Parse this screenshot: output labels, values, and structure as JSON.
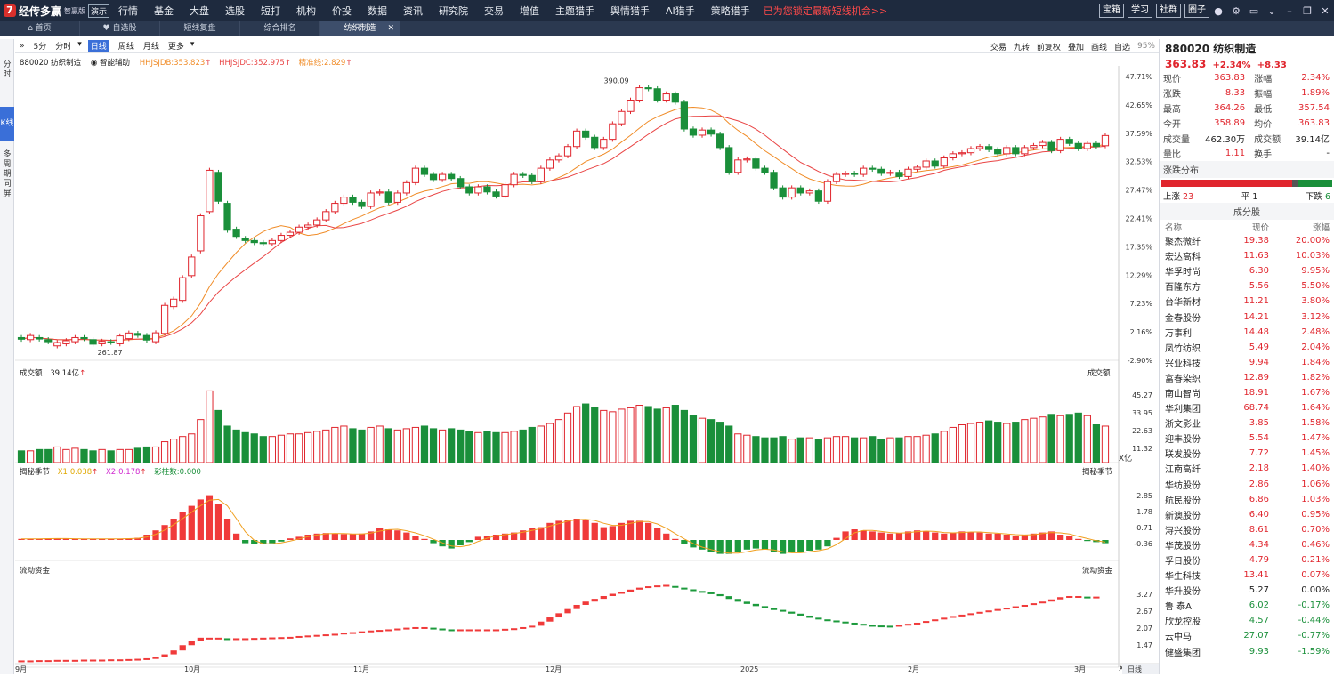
{
  "app": {
    "logo": "7",
    "name": "经传多赢",
    "edition": "智赢版",
    "demo": "演示",
    "promo": "已为您锁定最新短线机会>>"
  },
  "menu": [
    "行情",
    "基金",
    "大盘",
    "选股",
    "短打",
    "机构",
    "价投",
    "数据",
    "资讯",
    "研究院",
    "交易",
    "增值",
    "主题猎手",
    "舆情猎手",
    "AI猎手",
    "策略猎手"
  ],
  "top_right": {
    "buttons": [
      "宝箱",
      "学习",
      "社群",
      "圈子"
    ],
    "icons": [
      "user-icon",
      "gear-icon",
      "window-icon",
      "chevron-down-icon",
      "minimize-icon",
      "restore-icon",
      "close-icon"
    ]
  },
  "tabs": [
    {
      "label": "首页",
      "icon": "home-icon"
    },
    {
      "label": "自选股",
      "icon": "heart-icon"
    },
    {
      "label": "短线复盘"
    },
    {
      "label": "综合排名"
    },
    {
      "label": "纺织制造",
      "active": true
    }
  ],
  "side_tabs": [
    "分时",
    "K线",
    "多周期同屏"
  ],
  "toolbar": {
    "periods": [
      "5分",
      "分时",
      "日线",
      "周线",
      "月线",
      "更多"
    ],
    "selected": "日线",
    "right": [
      "交易",
      "九转",
      "前复权",
      "叠加",
      "画线",
      "自选"
    ],
    "zoom": "95%"
  },
  "chart_header": {
    "code_name": "880020 纺织制造",
    "smart": "智能辅助",
    "ma1": "HHJSJDB:353.823",
    "ma2": "HHJSJDC:352.975",
    "ma3": "精准线:2.829"
  },
  "volume_header": {
    "label": "成交额",
    "value": "39.14亿",
    "right": "成交额",
    "unit": "X亿"
  },
  "ind_header": {
    "name": "揭秘季节",
    "x1": "X1:0.038",
    "x2": "X2:0.178",
    "k": "彩柱数:0.000",
    "right": "揭秘季节"
  },
  "flow_header": {
    "name": "流动资金",
    "right": "流动资金",
    "unit": "X亿"
  },
  "price_axis": [
    "47.71%",
    "42.65%",
    "37.59%",
    "32.53%",
    "27.47%",
    "22.41%",
    "17.35%",
    "12.29%",
    "7.23%",
    "2.16%",
    "-2.90%"
  ],
  "vol_axis": [
    "45.27",
    "33.95",
    "22.63",
    "11.32"
  ],
  "ind_axis": [
    "2.85",
    "1.78",
    "0.71",
    "-0.36"
  ],
  "flow_axis": [
    "3.27",
    "2.67",
    "2.07",
    "1.47"
  ],
  "date_axis": [
    "9月",
    "10月",
    "11月",
    "12月",
    "2025",
    "2月",
    "3月"
  ],
  "period_btn": "日线",
  "annot": {
    "high": "390.09",
    "low": "261.87"
  },
  "chart_data": {
    "type": "candlestick",
    "ylim": [
      255,
      395
    ],
    "closes": [
      265.2,
      267.0,
      265.3,
      264.0,
      263.6,
      264.5,
      266.0,
      265.5,
      262.8,
      264.2,
      263.7,
      266.8,
      268.2,
      267.1,
      264.8,
      268.3,
      281.6,
      284.6,
      295.0,
      305.0,
      325.0,
      347.0,
      332.0,
      318.0,
      315.0,
      313.0,
      312.0,
      311.5,
      313.0,
      315.5,
      317.0,
      319.5,
      320.5,
      323.0,
      327.0,
      331.0,
      334.0,
      331.5,
      329.5,
      336.0,
      336.5,
      331.5,
      336.0,
      341.0,
      348.0,
      345.0,
      342.5,
      345.0,
      343.0,
      339.0,
      336.0,
      339.0,
      336.5,
      334.5,
      340.0,
      345.0,
      344.5,
      341.5,
      348.0,
      352.0,
      354.0,
      358.5,
      366.0,
      363.0,
      358.0,
      362.0,
      369.5,
      375.5,
      381.0,
      387.0,
      386.5,
      381.0,
      384.0,
      380.0,
      367.0,
      364.0,
      366.5,
      364.5,
      358.0,
      346.0,
      352.0,
      352.5,
      348.0,
      346.0,
      338.5,
      334.0,
      338.5,
      336.0,
      337.0,
      332.0,
      341.5,
      345.0,
      345.5,
      345.0,
      348.0,
      347.5,
      345.5,
      346.0,
      344.0,
      347.5,
      348.5,
      351.5,
      349.0,
      353.0,
      355.0,
      355.5,
      357.5,
      358.5,
      357.0,
      355.0,
      358.0,
      355.0,
      358.0,
      359.0,
      360.5,
      356.5,
      362.0,
      360.0,
      357.5,
      360.0,
      358.5,
      363.83
    ],
    "opens": [
      266.0,
      265.0,
      266.0,
      265.0,
      262.0,
      263.0,
      264.0,
      266.0,
      265.0,
      263.0,
      264.0,
      263.0,
      265.5,
      268.0,
      267.0,
      264.0,
      268.0,
      281.0,
      284.0,
      296.0,
      308.0,
      327.0,
      346.0,
      331.0,
      318.5,
      314.0,
      313.0,
      312.0,
      311.5,
      313.0,
      315.5,
      317.0,
      319.5,
      320.5,
      323.0,
      327.0,
      331.0,
      334.0,
      331.5,
      329.5,
      336.0,
      336.5,
      331.5,
      336.0,
      341.0,
      348.0,
      345.0,
      342.5,
      345.0,
      343.0,
      339.0,
      336.0,
      339.0,
      336.5,
      334.5,
      340.0,
      345.0,
      344.5,
      341.5,
      348.0,
      352.0,
      354.0,
      358.5,
      366.0,
      363.0,
      358.0,
      362.0,
      369.5,
      375.5,
      381.0,
      387.0,
      386.5,
      381.0,
      384.0,
      380.0,
      367.0,
      364.0,
      366.5,
      364.5,
      358.0,
      346.0,
      352.0,
      352.5,
      348.0,
      346.0,
      338.5,
      334.0,
      338.5,
      336.0,
      337.0,
      332.0,
      341.5,
      345.0,
      345.5,
      345.0,
      348.0,
      347.5,
      345.5,
      346.0,
      344.0,
      347.5,
      348.5,
      351.5,
      349.0,
      353.0,
      355.0,
      355.5,
      357.5,
      358.5,
      357.0,
      355.0,
      358.0,
      355.0,
      358.0,
      359.0,
      360.5,
      356.5,
      362.0,
      360.0,
      357.5,
      360.0,
      358.89
    ],
    "volumes": [
      9,
      9,
      10,
      10,
      12,
      10,
      11,
      10,
      9,
      10,
      9,
      10,
      10,
      11,
      12,
      12,
      16,
      18,
      20,
      22,
      33,
      55,
      40,
      28,
      25,
      23,
      22,
      20,
      20,
      21,
      22,
      22,
      23,
      24,
      25,
      27,
      28,
      26,
      25,
      27,
      28,
      26,
      25,
      26,
      27,
      28,
      26,
      25,
      26,
      25,
      24,
      23,
      24,
      23,
      23,
      24,
      25,
      27,
      28,
      30,
      33,
      38,
      43,
      45,
      42,
      40,
      39,
      41,
      42,
      44,
      43,
      41,
      42,
      44,
      40,
      36,
      34,
      33,
      31,
      28,
      22,
      21,
      20,
      19,
      19,
      20,
      18,
      19,
      19,
      18,
      19,
      20,
      20,
      19,
      19,
      20,
      18,
      19,
      19,
      20,
      20,
      21,
      22,
      24,
      27,
      29,
      30,
      31,
      32,
      31,
      30,
      31,
      33,
      34,
      35,
      37,
      36,
      37,
      38,
      36,
      29,
      28,
      39.14
    ],
    "ind": [
      0.1,
      0.1,
      0.12,
      0.15,
      0.13,
      0.12,
      0.1,
      0.1,
      0.09,
      0.1,
      0.1,
      0.12,
      0.15,
      0.2,
      0.5,
      0.9,
      1.4,
      2.0,
      2.6,
      3.2,
      3.8,
      4.2,
      3.4,
      2.0,
      0.6,
      -0.3,
      -0.4,
      -0.35,
      -0.3,
      -0.15,
      0.15,
      0.3,
      0.5,
      0.6,
      0.65,
      0.6,
      0.55,
      0.55,
      0.6,
      0.8,
      1.1,
      1.0,
      0.9,
      0.7,
      0.4,
      0.1,
      -0.3,
      -0.6,
      -0.8,
      -0.5,
      -0.2,
      0.3,
      0.4,
      0.5,
      0.6,
      0.7,
      0.9,
      1.1,
      1.2,
      1.6,
      1.8,
      1.9,
      2.0,
      1.9,
      1.6,
      1.2,
      1.3,
      1.6,
      1.8,
      1.8,
      1.6,
      1.1,
      0.6,
      0.1,
      -0.4,
      -0.7,
      -0.9,
      -1.1,
      -1.3,
      -1.3,
      -1.1,
      -0.9,
      -0.8,
      -0.9,
      -1.1,
      -1.3,
      -1.2,
      -1.1,
      -1.0,
      -0.9,
      -0.6,
      0.2,
      0.8,
      1.0,
      0.9,
      0.8,
      0.7,
      0.6,
      0.65,
      0.8,
      0.9,
      0.8,
      0.7,
      0.6,
      0.7,
      0.8,
      0.75,
      0.7,
      0.6,
      0.6,
      0.5,
      0.4,
      0.5,
      0.6,
      0.7,
      0.8,
      0.5,
      0.4,
      0.1,
      -0.1,
      -0.2,
      -0.3
    ],
    "flow": [
      0.3,
      0.3,
      0.31,
      0.31,
      0.32,
      0.32,
      0.32,
      0.33,
      0.33,
      0.33,
      0.34,
      0.34,
      0.35,
      0.36,
      0.38,
      0.42,
      0.52,
      0.66,
      0.85,
      1.0,
      1.12,
      1.12,
      1.12,
      1.1,
      1.1,
      1.1,
      1.11,
      1.12,
      1.13,
      1.14,
      1.15,
      1.18,
      1.2,
      1.22,
      1.24,
      1.26,
      1.3,
      1.32,
      1.35,
      1.38,
      1.4,
      1.42,
      1.45,
      1.48,
      1.5,
      1.5,
      1.48,
      1.45,
      1.42,
      1.42,
      1.42,
      1.42,
      1.42,
      1.42,
      1.44,
      1.46,
      1.5,
      1.55,
      1.7,
      1.85,
      2.0,
      2.15,
      2.3,
      2.42,
      2.52,
      2.62,
      2.7,
      2.77,
      2.85,
      2.92,
      2.97,
      3.0,
      3.02,
      2.98,
      2.92,
      2.86,
      2.8,
      2.75,
      2.68,
      2.58,
      2.48,
      2.4,
      2.32,
      2.25,
      2.18,
      2.12,
      2.05,
      1.98,
      1.9,
      1.84,
      1.78,
      1.74,
      1.7,
      1.66,
      1.62,
      1.58,
      1.56,
      1.55,
      1.58,
      1.62,
      1.66,
      1.72,
      1.78,
      1.84,
      1.9,
      1.95,
      2.0,
      2.05,
      2.1,
      2.15,
      2.2,
      2.25,
      2.3,
      2.36,
      2.42,
      2.5,
      2.58,
      2.62,
      2.62,
      2.6,
      2.6
    ]
  },
  "quote": {
    "code_name": "880020 纺织制造",
    "price": "363.83",
    "chg_pct": "+2.34%",
    "chg": "+8.33",
    "rows": [
      [
        "现价",
        "363.83",
        "涨幅",
        "2.34%"
      ],
      [
        "涨跌",
        "8.33",
        "振幅",
        "1.89%"
      ],
      [
        "最高",
        "364.26",
        "最低",
        "357.54"
      ],
      [
        "今开",
        "358.89",
        "均价",
        "363.83"
      ],
      [
        "成交量",
        "462.30万",
        "成交额",
        "39.14亿"
      ],
      [
        "量比",
        "1.11",
        "换手",
        "-"
      ]
    ]
  },
  "dist": {
    "title": "涨跌分布",
    "up_label": "上涨",
    "up": "23",
    "flat_label": "平",
    "flat": "1",
    "down_label": "下跌",
    "down": "6"
  },
  "components": {
    "title": "成分股",
    "headers": [
      "名称",
      "现价",
      "涨幅"
    ],
    "rows": [
      [
        "聚杰微纤",
        "19.38",
        "20.00%"
      ],
      [
        "宏达高科",
        "11.63",
        "10.03%"
      ],
      [
        "华孚时尚",
        "6.30",
        "9.95%"
      ],
      [
        "百隆东方",
        "5.56",
        "5.50%"
      ],
      [
        "台华新材",
        "11.21",
        "3.80%"
      ],
      [
        "金春股份",
        "14.21",
        "3.12%"
      ],
      [
        "万事利",
        "14.48",
        "2.48%"
      ],
      [
        "凤竹纺织",
        "5.49",
        "2.04%"
      ],
      [
        "兴业科技",
        "9.94",
        "1.84%"
      ],
      [
        "富春染织",
        "12.89",
        "1.82%"
      ],
      [
        "南山智尚",
        "18.91",
        "1.67%"
      ],
      [
        "华利集团",
        "68.74",
        "1.64%"
      ],
      [
        "浙文影业",
        "3.85",
        "1.58%"
      ],
      [
        "迎丰股份",
        "5.54",
        "1.47%"
      ],
      [
        "联发股份",
        "7.72",
        "1.45%"
      ],
      [
        "江南高纤",
        "2.18",
        "1.40%"
      ],
      [
        "华纺股份",
        "2.86",
        "1.06%"
      ],
      [
        "航民股份",
        "6.86",
        "1.03%"
      ],
      [
        "新澳股份",
        "6.40",
        "0.95%"
      ],
      [
        "浔兴股份",
        "8.61",
        "0.70%"
      ],
      [
        "华茂股份",
        "4.34",
        "0.46%"
      ],
      [
        "孚日股份",
        "4.79",
        "0.21%"
      ],
      [
        "华生科技",
        "13.41",
        "0.07%"
      ],
      [
        "华升股份",
        "5.27",
        "0.00%"
      ],
      [
        "鲁 泰A",
        "6.02",
        "-0.17%"
      ],
      [
        "欣龙控股",
        "4.57",
        "-0.44%"
      ],
      [
        "云中马",
        "27.07",
        "-0.77%"
      ],
      [
        "健盛集团",
        "9.93",
        "-1.59%"
      ]
    ]
  },
  "colors": {
    "up": "#e0252d",
    "down": "#1a8f3a",
    "ma_orange": "#f08c28",
    "ma_red": "#e94545"
  }
}
